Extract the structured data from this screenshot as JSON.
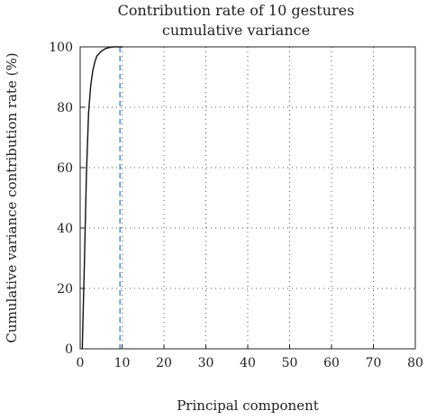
{
  "chart_data": {
    "type": "line",
    "title": [
      "Contribution rate of 10 gestures",
      "cumulative variance"
    ],
    "xlabel": "Principal component",
    "ylabel": "Cumulative variance contribution rate (%)",
    "xlim": [
      0,
      80
    ],
    "ylim": [
      0,
      100
    ],
    "xticks": [
      0,
      10,
      20,
      30,
      40,
      50,
      60,
      70,
      80
    ],
    "yticks": [
      0,
      20,
      40,
      60,
      80,
      100
    ],
    "grid": true,
    "series": [
      {
        "color": "#111111",
        "x": [
          0.5,
          1,
          1.5,
          2,
          2.5,
          3,
          3.5,
          4,
          5,
          6,
          7,
          8,
          9,
          10
        ],
        "y": [
          0,
          28,
          58,
          78,
          87,
          92,
          95,
          97,
          98.5,
          99.4,
          99.8,
          100,
          100,
          100
        ]
      }
    ],
    "reference_line": {
      "x": 9.5,
      "color": "#4a86c8",
      "style": "dashed"
    }
  }
}
